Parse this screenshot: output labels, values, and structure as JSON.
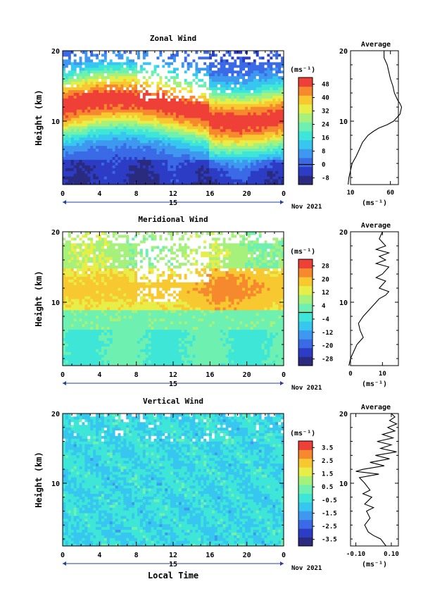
{
  "chart_data": [
    {
      "type": "heatmap",
      "title": "Zonal Wind",
      "ylabel": "Height (km)",
      "xlabel": "",
      "xlim": [
        0,
        24
      ],
      "ylim": [
        1,
        20
      ],
      "x_ticks": [
        "0",
        "4",
        "8",
        "12",
        "16",
        "20",
        "0"
      ],
      "x_tick_values": [
        0,
        4,
        8,
        12,
        16,
        20,
        24
      ],
      "y_ticks": [
        "10",
        "20"
      ],
      "y_tick_values": [
        10,
        20
      ],
      "day_label": "15",
      "date_label": "Nov 2021",
      "colorbar": {
        "unit": "(ms⁻¹)",
        "ticks": [
          "48",
          "40",
          "32",
          "24",
          "16",
          "8",
          "0",
          "-8"
        ],
        "tick_values": [
          48,
          40,
          32,
          24,
          16,
          8,
          0,
          -8
        ],
        "vmin": -12,
        "vmax": 52,
        "zero_line": 0
      },
      "profile_points": [
        [
          52,
          20.0
        ],
        [
          52,
          19.0
        ],
        [
          56,
          18.0
        ],
        [
          58,
          17.0
        ],
        [
          60,
          16.0
        ],
        [
          63,
          15.0
        ],
        [
          65,
          14.0
        ],
        [
          69,
          13.0
        ],
        [
          72,
          12.5
        ],
        [
          74,
          12.0
        ],
        [
          72,
          11.0
        ],
        [
          64,
          10.0
        ],
        [
          56,
          9.5
        ],
        [
          45,
          9.0
        ],
        [
          38,
          8.5
        ],
        [
          32,
          8.0
        ],
        [
          25,
          7.0
        ],
        [
          21,
          6.0
        ],
        [
          17,
          5.0
        ],
        [
          12,
          4.0
        ],
        [
          10,
          3.0
        ],
        [
          8,
          2.0
        ],
        [
          7,
          1.0
        ]
      ]
    },
    {
      "type": "heatmap",
      "title": "Meridional Wind",
      "ylabel": "Height (km)",
      "xlabel": "",
      "xlim": [
        0,
        24
      ],
      "ylim": [
        1,
        20
      ],
      "x_ticks": [
        "0",
        "4",
        "8",
        "12",
        "16",
        "20",
        "0"
      ],
      "x_tick_values": [
        0,
        4,
        8,
        12,
        16,
        20,
        24
      ],
      "y_ticks": [
        "10",
        "20"
      ],
      "y_tick_values": [
        10,
        20
      ],
      "day_label": "15",
      "date_label": "Nov 2021",
      "colorbar": {
        "unit": "(ms⁻¹)",
        "ticks": [
          "28",
          "20",
          "12",
          "4",
          "-4",
          "-12",
          "-20",
          "-28"
        ],
        "tick_values": [
          28,
          20,
          12,
          4,
          -4,
          -12,
          -20,
          -28
        ],
        "vmin": -32,
        "vmax": 32,
        "zero_line": 0
      },
      "profile_points": [
        [
          10,
          20.0
        ],
        [
          9,
          19.0
        ],
        [
          11,
          18.0
        ],
        [
          8,
          17.5
        ],
        [
          12,
          17.0
        ],
        [
          9,
          16.5
        ],
        [
          11,
          16.0
        ],
        [
          8,
          15.5
        ],
        [
          12,
          15.0
        ],
        [
          10,
          14.0
        ],
        [
          8,
          13.5
        ],
        [
          11,
          13.0
        ],
        [
          9,
          12.0
        ],
        [
          12,
          11.5
        ],
        [
          11,
          11.0
        ],
        [
          9,
          10.5
        ],
        [
          8,
          10.0
        ],
        [
          6,
          9.0
        ],
        [
          4,
          8.0
        ],
        [
          2.5,
          7.0
        ],
        [
          3,
          6.0
        ],
        [
          4,
          5.0
        ],
        [
          2,
          4.0
        ],
        [
          1,
          3.0
        ],
        [
          0,
          2.0
        ],
        [
          -0.5,
          1.0
        ]
      ]
    },
    {
      "type": "heatmap",
      "title": "Vertical Wind",
      "ylabel": "Height (km)",
      "xlabel": "Local Time",
      "xlim": [
        0,
        24
      ],
      "ylim": [
        1,
        20
      ],
      "x_ticks": [
        "0",
        "4",
        "8",
        "12",
        "16",
        "20",
        "0"
      ],
      "x_tick_values": [
        0,
        4,
        8,
        12,
        16,
        20,
        24
      ],
      "y_ticks": [
        "10",
        "20"
      ],
      "y_tick_values": [
        10,
        20
      ],
      "day_label": "15",
      "date_label": "Nov 2021",
      "colorbar": {
        "unit": "(ms⁻¹)",
        "ticks": [
          "3.5",
          "2.5",
          "1.5",
          "0.5",
          "-0.5",
          "-1.5",
          "-2.5",
          "-3.5"
        ],
        "tick_values": [
          3.5,
          2.5,
          1.5,
          0.5,
          -0.5,
          -1.5,
          -2.5,
          -3.5
        ],
        "vmin": -4,
        "vmax": 4,
        "zero_line": null
      },
      "profile_points": [
        [
          0.1,
          20.0
        ],
        [
          0.12,
          19.5
        ],
        [
          0.09,
          19.0
        ],
        [
          0.13,
          18.5
        ],
        [
          0.08,
          18.0
        ],
        [
          0.12,
          17.5
        ],
        [
          0.05,
          17.0
        ],
        [
          0.11,
          16.5
        ],
        [
          0.02,
          16.0
        ],
        [
          0.1,
          15.5
        ],
        [
          0.04,
          15.0
        ],
        [
          0.13,
          14.5
        ],
        [
          0.01,
          14.0
        ],
        [
          0.09,
          13.5
        ],
        [
          -0.02,
          13.0
        ],
        [
          0.06,
          12.5
        ],
        [
          -0.06,
          12.0
        ],
        [
          -0.1,
          11.7
        ],
        [
          0.03,
          11.3
        ],
        [
          -0.08,
          10.8
        ],
        [
          -0.05,
          10.0
        ],
        [
          -0.02,
          9.0
        ],
        [
          -0.06,
          8.5
        ],
        [
          -0.01,
          8.0
        ],
        [
          -0.05,
          7.0
        ],
        [
          0.0,
          6.5
        ],
        [
          -0.04,
          6.0
        ],
        [
          -0.02,
          5.0
        ],
        [
          -0.05,
          4.0
        ],
        [
          -0.03,
          3.0
        ],
        [
          0.0,
          2.5
        ],
        [
          0.04,
          2.0
        ],
        [
          0.07,
          1.0
        ]
      ]
    }
  ],
  "profiles": [
    {
      "title": "Average",
      "xlim": [
        10,
        70
      ],
      "ylim": [
        1,
        20
      ],
      "x_ticks": [
        "10",
        "60"
      ],
      "x_tick_values": [
        10,
        60
      ],
      "y_ticks": [
        "10",
        "20"
      ],
      "y_tick_values": [
        10,
        20
      ],
      "unit": "(ms⁻¹)"
    },
    {
      "title": "Average",
      "xlim": [
        0,
        15
      ],
      "ylim": [
        1,
        20
      ],
      "x_ticks": [
        "0",
        "10"
      ],
      "x_tick_values": [
        0,
        10
      ],
      "y_ticks": [
        "10",
        "20"
      ],
      "y_tick_values": [
        10,
        20
      ],
      "unit": "(ms⁻¹)"
    },
    {
      "title": "Average",
      "xlim": [
        -0.13,
        0.14
      ],
      "ylim": [
        1,
        20
      ],
      "x_ticks": [
        "-0.10",
        "0.10"
      ],
      "x_tick_values": [
        -0.1,
        0.1
      ],
      "y_ticks": [
        "10",
        "20"
      ],
      "y_tick_values": [
        10,
        20
      ],
      "unit": "(ms⁻¹)"
    }
  ],
  "colors": {
    "palette": [
      "#2a2a7e",
      "#2c3cc4",
      "#3a6ae6",
      "#3f98ef",
      "#36c6ef",
      "#3ee6d8",
      "#6ef0b0",
      "#a6f07c",
      "#e8ee48",
      "#f8c830",
      "#f6882e",
      "#ee4036"
    ],
    "axis": "#000000",
    "background": "#ffffff"
  }
}
